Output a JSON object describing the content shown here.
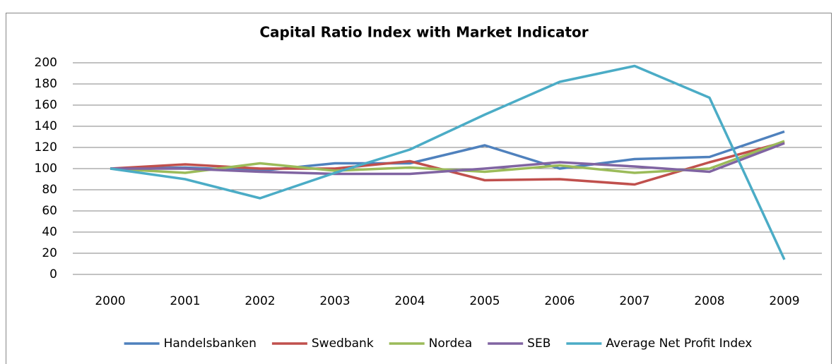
{
  "chart_data": {
    "type": "line",
    "title": "Capital Ratio Index with Market Indicator",
    "categories": [
      "2000",
      "2001",
      "2002",
      "2003",
      "2004",
      "2005",
      "2006",
      "2007",
      "2008",
      "2009"
    ],
    "series": [
      {
        "name": "Handelsbanken",
        "color": "#4f81bd",
        "values": [
          100,
          101,
          98,
          105,
          105,
          122,
          100,
          109,
          111,
          135
        ]
      },
      {
        "name": "Swedbank",
        "color": "#c0504d",
        "values": [
          100,
          104,
          100,
          100,
          107,
          89,
          90,
          85,
          106,
          125
        ]
      },
      {
        "name": "Nordea",
        "color": "#9bbb59",
        "values": [
          100,
          96,
          105,
          98,
          101,
          97,
          103,
          96,
          100,
          126
        ]
      },
      {
        "name": "SEB",
        "color": "#8064a2",
        "values": [
          100,
          100,
          97,
          95,
          95,
          100,
          106,
          102,
          97,
          124
        ]
      },
      {
        "name": "Average Net Profit Index",
        "color": "#4bacc6",
        "values": [
          100,
          90,
          72,
          96,
          118,
          151,
          182,
          197,
          167,
          14
        ]
      }
    ],
    "ylim": [
      0,
      200
    ],
    "yticks": [
      0,
      20,
      40,
      60,
      80,
      100,
      120,
      140,
      160,
      180,
      200
    ],
    "grid": true,
    "legend": "bottom"
  }
}
